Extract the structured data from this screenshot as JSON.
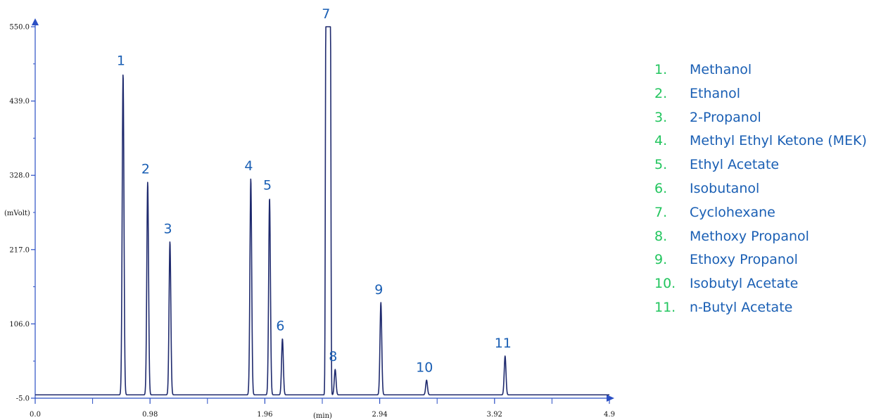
{
  "chart_data": {
    "type": "line",
    "xlabel": "(min)",
    "ylabel": "(mVolt)",
    "xlim": [
      0.0,
      4.9
    ],
    "ylim": [
      -5.0,
      550.0
    ],
    "x_ticks": [
      "0.0",
      "0.98",
      "1.96",
      "2.94",
      "3.92",
      "4.9"
    ],
    "y_ticks": [
      "-5.0",
      "106.0",
      "217.0",
      "328.0",
      "439.0",
      "550.0"
    ],
    "baseline": 0,
    "axis_color": "#2b4fc4",
    "trace_color": "#1f2a6e",
    "peaks": [
      {
        "label": "1",
        "x": 0.75,
        "height": 480
      },
      {
        "label": "2",
        "x": 0.96,
        "height": 318
      },
      {
        "label": "3",
        "x": 1.15,
        "height": 229
      },
      {
        "label": "4",
        "x": 1.84,
        "height": 323
      },
      {
        "label": "5",
        "x": 2.0,
        "height": 294
      },
      {
        "label": "6",
        "x": 2.11,
        "height": 84
      },
      {
        "label": "7",
        "x": 2.5,
        "height": 550
      },
      {
        "label": "8",
        "x": 2.56,
        "height": 38
      },
      {
        "label": "9",
        "x": 2.95,
        "height": 138
      },
      {
        "label": "10",
        "x": 3.34,
        "height": 22
      },
      {
        "label": "11",
        "x": 4.01,
        "height": 58
      }
    ]
  },
  "legend": [
    {
      "num": "1.",
      "name": "Methanol"
    },
    {
      "num": "2.",
      "name": "Ethanol"
    },
    {
      "num": "3.",
      "name": "2-Propanol"
    },
    {
      "num": "4.",
      "name": "Methyl Ethyl Ketone (MEK)"
    },
    {
      "num": "5.",
      "name": "Ethyl Acetate"
    },
    {
      "num": "6.",
      "name": "Isobutanol"
    },
    {
      "num": "7.",
      "name": "Cyclohexane"
    },
    {
      "num": "8.",
      "name": "Methoxy Propanol"
    },
    {
      "num": "9.",
      "name": "Ethoxy Propanol"
    },
    {
      "num": "10.",
      "name": "Isobutyl Acetate"
    },
    {
      "num": "11.",
      "name": "n-Butyl Acetate"
    }
  ]
}
